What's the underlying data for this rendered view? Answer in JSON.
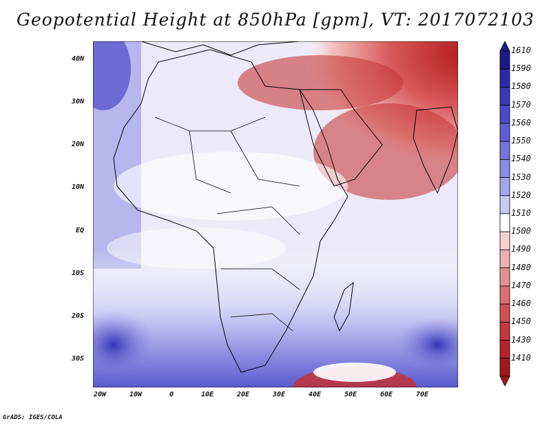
{
  "title": "Geopotential Height at 850hPa [gpm], VT: 2017072103",
  "credit": "GrADS: IGES/COLA",
  "map": {
    "lon_labels": [
      "20W",
      "10W",
      "0",
      "10E",
      "20E",
      "30E",
      "40E",
      "50E",
      "60E",
      "70E"
    ],
    "lat_labels": [
      "40N",
      "30N",
      "20N",
      "10N",
      "EQ",
      "10S",
      "20S",
      "30S"
    ]
  },
  "legend": {
    "labels": [
      "1610",
      "1590",
      "1580",
      "1570",
      "1560",
      "1550",
      "1540",
      "1530",
      "1520",
      "1510",
      "1500",
      "1490",
      "1480",
      "1470",
      "1460",
      "1450",
      "1430",
      "1410"
    ],
    "colors": [
      "#1e1a8c",
      "#2a2aa8",
      "#3a3ab8",
      "#4a4ac8",
      "#5e5ed2",
      "#7474dc",
      "#8c8ce4",
      "#a6a6ec",
      "#c8c8f4",
      "#ffffff",
      "#f6d0d0",
      "#eeb0b0",
      "#e49090",
      "#da7070",
      "#d05050",
      "#c43838",
      "#b42626",
      "#a01818"
    ]
  }
}
